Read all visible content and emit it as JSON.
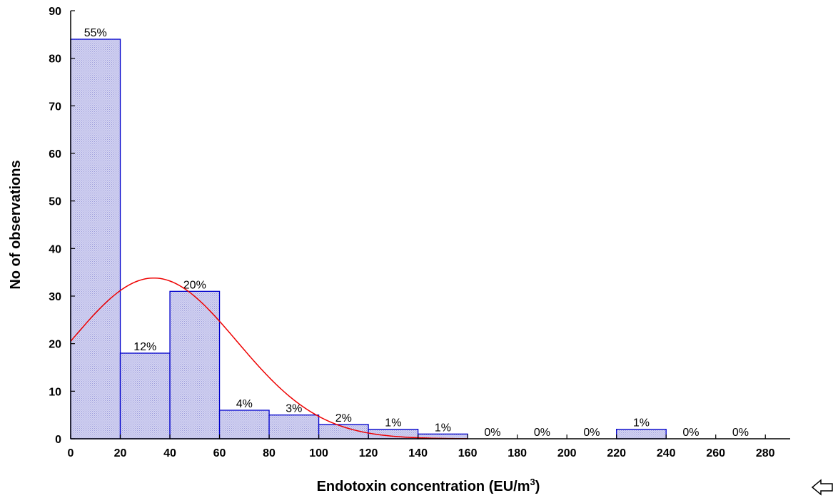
{
  "chart_data": {
    "type": "bar",
    "title": "",
    "xlabel": "Endotoxin concentration (EU/m",
    "xlabel_superscript": "3",
    "xlabel_suffix": ")",
    "ylabel": "No of observations",
    "xlim": [
      0,
      290
    ],
    "ylim": [
      0,
      90
    ],
    "x_ticks": [
      0,
      20,
      40,
      60,
      80,
      100,
      120,
      140,
      160,
      180,
      200,
      220,
      240,
      260,
      280
    ],
    "y_ticks": [
      0,
      10,
      20,
      30,
      40,
      50,
      60,
      70,
      80,
      90
    ],
    "bin_width": 20,
    "bins": [
      {
        "start": 0,
        "count": 84,
        "label": "55%"
      },
      {
        "start": 20,
        "count": 18,
        "label": "12%"
      },
      {
        "start": 40,
        "count": 31,
        "label": "20%"
      },
      {
        "start": 60,
        "count": 6,
        "label": "4%"
      },
      {
        "start": 80,
        "count": 5,
        "label": "3%"
      },
      {
        "start": 100,
        "count": 3,
        "label": "2%"
      },
      {
        "start": 120,
        "count": 2,
        "label": "1%"
      },
      {
        "start": 140,
        "count": 1,
        "label": "1%"
      },
      {
        "start": 160,
        "count": 0,
        "label": "0%"
      },
      {
        "start": 180,
        "count": 0,
        "label": "0%"
      },
      {
        "start": 200,
        "count": 0,
        "label": "0%"
      },
      {
        "start": 220,
        "count": 2,
        "label": "1%"
      },
      {
        "start": 240,
        "count": 0,
        "label": "0%"
      },
      {
        "start": 260,
        "count": 0,
        "label": "0%"
      }
    ],
    "fit_curve": {
      "type": "normal",
      "color": "#ee0000",
      "mean": 33.5,
      "sd": 33.5,
      "peak": 33.8,
      "x_range": [
        0,
        160
      ]
    },
    "bar_fill": "#c8c8f0",
    "bar_stroke": "#0000cc",
    "grid": false,
    "legend": "none"
  },
  "nav": {
    "arrow_icon": "left-arrow-icon"
  }
}
